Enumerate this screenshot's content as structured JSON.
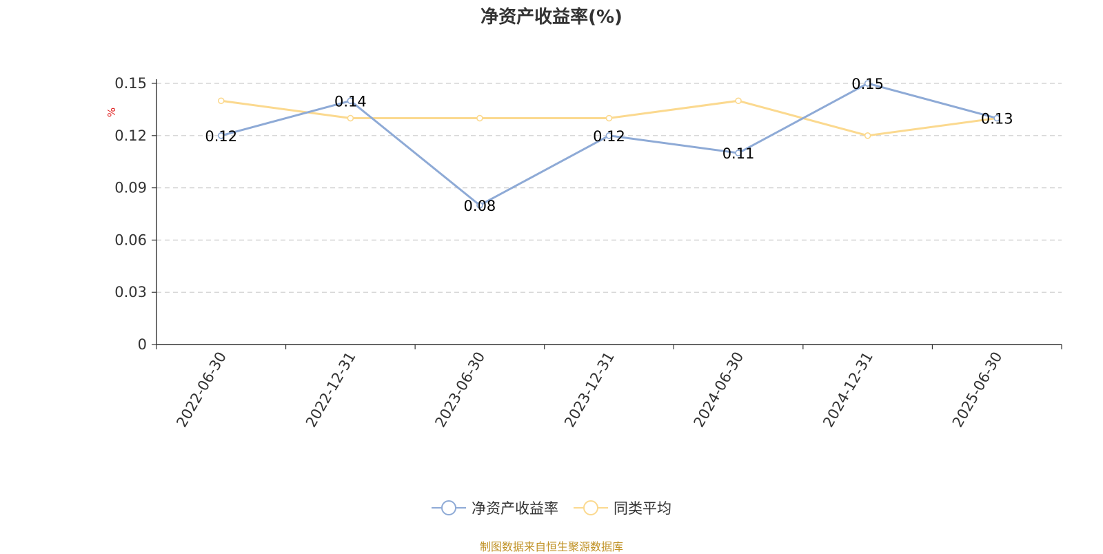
{
  "title": "净资产收益率(%)",
  "source_note": "制图数据来自恒生聚源数据库",
  "colors": {
    "series_roe": "#8eaad6",
    "series_avg": "#fbd98f",
    "axis": "#333333",
    "grid": "#cccccc",
    "ylabel": "#e02020",
    "source": "#c09226"
  },
  "chart_data": {
    "type": "line",
    "title": "净资产收益率(%)",
    "xlabel": "",
    "ylabel": "%",
    "ylim": [
      0,
      0.15
    ],
    "yticks": [
      "0",
      "0.03",
      "0.06",
      "0.09",
      "0.12",
      "0.15"
    ],
    "grid": true,
    "legend_position": "bottom",
    "categories": [
      "2022-06-30",
      "2022-12-31",
      "2023-06-30",
      "2023-12-31",
      "2024-06-30",
      "2024-12-31",
      "2025-06-30"
    ],
    "series": [
      {
        "name": "净资产收益率",
        "values": [
          0.12,
          0.14,
          0.08,
          0.12,
          0.11,
          0.15,
          0.13
        ],
        "data_labels": [
          "0.12",
          "0.14",
          "0.08",
          "0.12",
          "0.11",
          "0.15",
          "0.13"
        ]
      },
      {
        "name": "同类平均",
        "values": [
          0.14,
          0.13,
          0.13,
          0.13,
          0.14,
          0.12,
          0.13
        ]
      }
    ]
  }
}
